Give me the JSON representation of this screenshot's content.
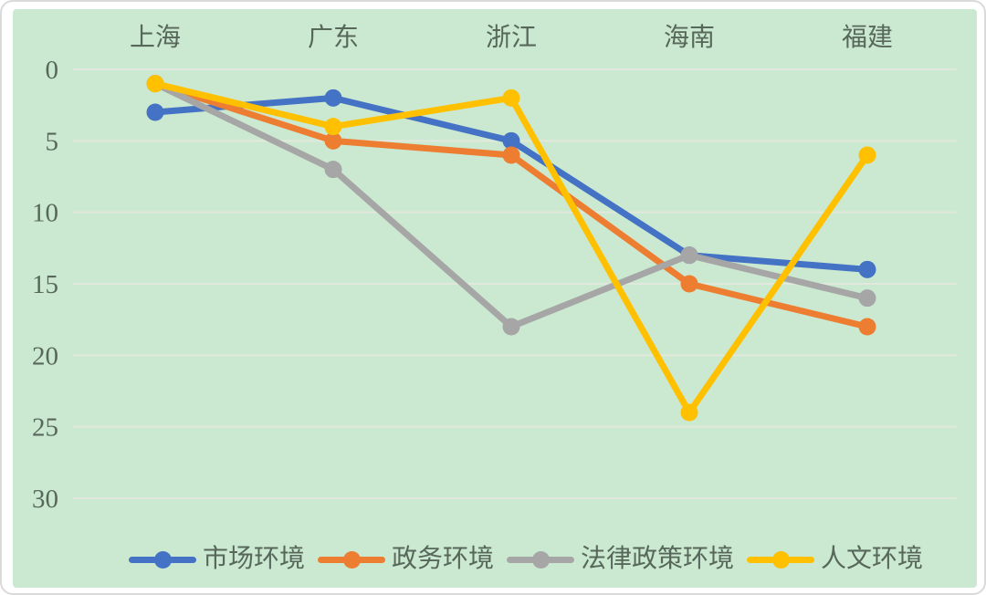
{
  "chart_data": {
    "type": "line",
    "title": "",
    "xlabel": "",
    "ylabel": "",
    "categories": [
      "上海",
      "广东",
      "浙江",
      "海南",
      "福建"
    ],
    "series": [
      {
        "name": "市场环境",
        "color": "#4472C4",
        "values": [
          3,
          2,
          5,
          13,
          14
        ]
      },
      {
        "name": "政务环境",
        "color": "#ED7D31",
        "values": [
          1,
          5,
          6,
          15,
          18
        ]
      },
      {
        "name": "法律政策环境",
        "color": "#A6A6A6",
        "values": [
          1,
          7,
          18,
          13,
          16
        ]
      },
      {
        "name": "人文环境",
        "color": "#FFC000",
        "values": [
          1,
          4,
          2,
          24,
          6
        ]
      }
    ],
    "y_axis": {
      "ticks": [
        0,
        5,
        10,
        15,
        20,
        25,
        30
      ],
      "min": 0,
      "max": 30,
      "inverted": true
    },
    "x_axis_position": "top",
    "legend_position": "bottom",
    "grid": "horizontal"
  },
  "colors": {
    "panel_bg": "#cbe9d0",
    "gridline": "#e3e8dd",
    "axis_text": "#57685b",
    "card_border": "#dadada"
  }
}
